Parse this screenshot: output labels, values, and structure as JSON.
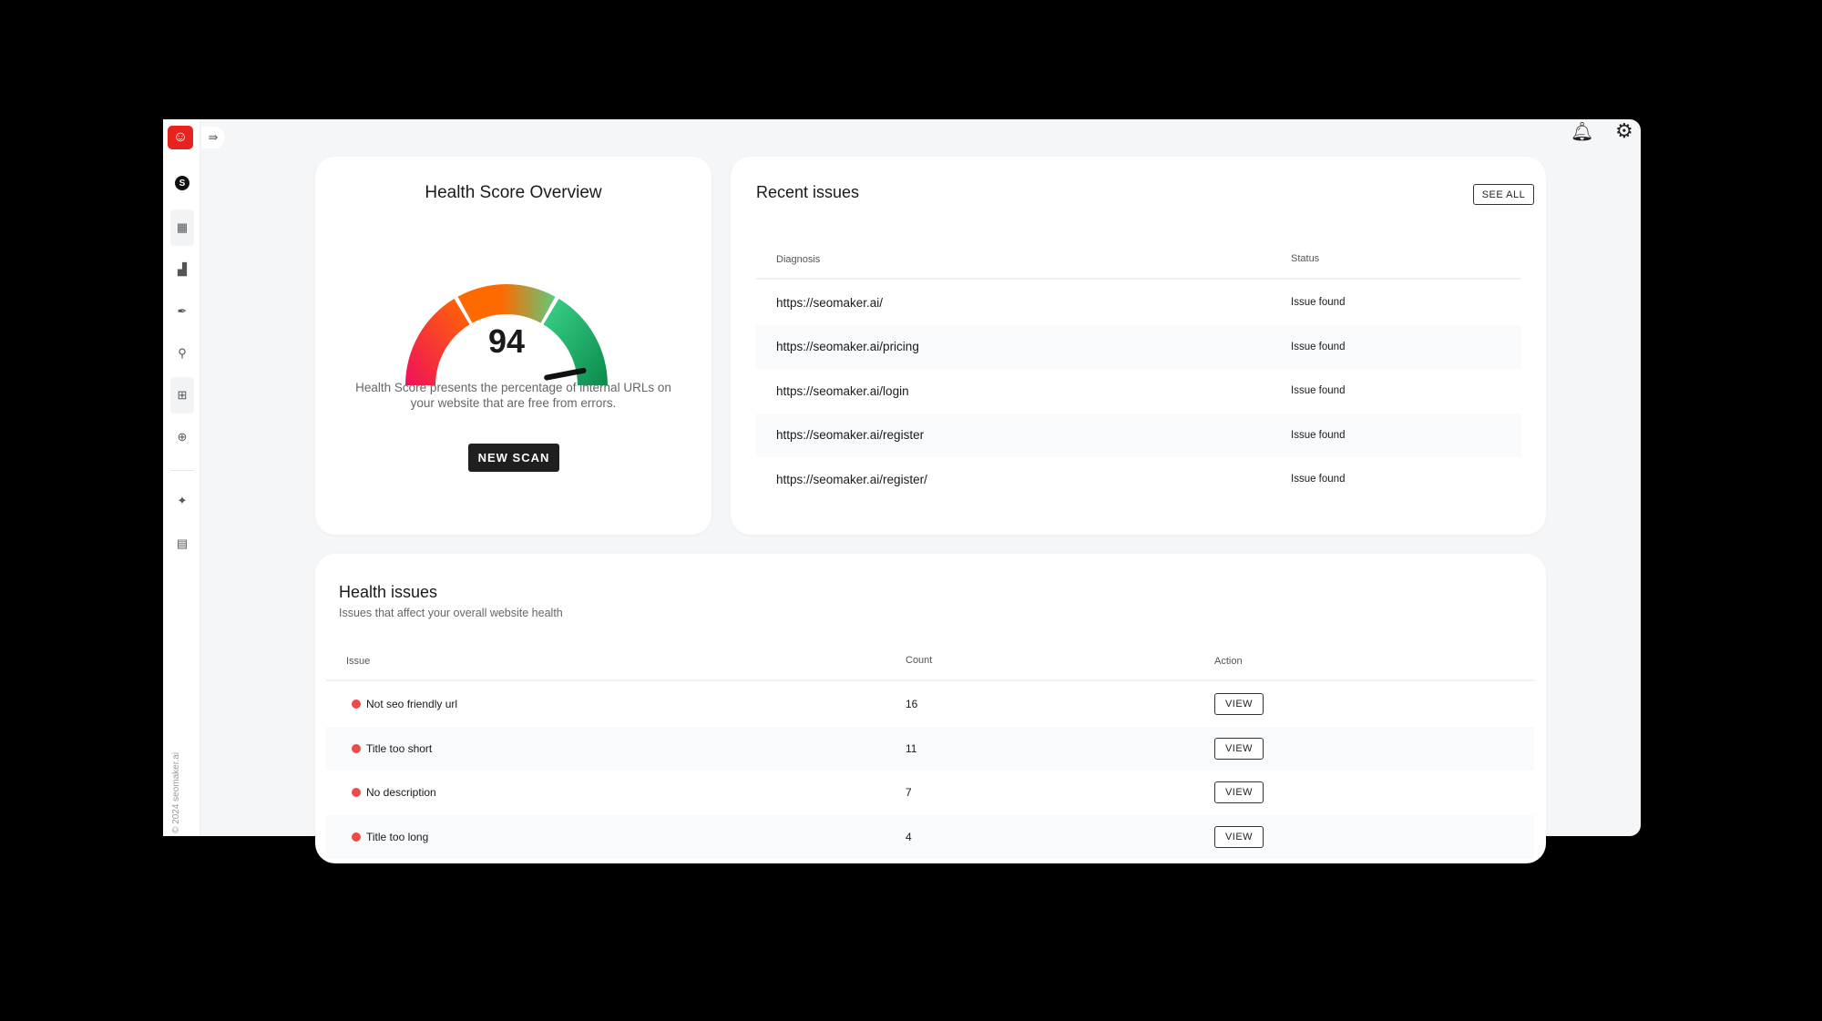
{
  "sidebar": {
    "logo": "seomaker-logo",
    "toggle_icon": "collapse-menu-icon",
    "items": [
      {
        "icon": "profile-s-icon"
      },
      {
        "icon": "dashboard-grid-icon",
        "active": true
      },
      {
        "icon": "bar-chart-icon"
      },
      {
        "icon": "feather-pen-icon"
      },
      {
        "icon": "search-icon"
      },
      {
        "icon": "health-plus-icon",
        "active": true
      },
      {
        "icon": "zoom-in-icon"
      },
      {
        "icon": "sparkles-icon"
      },
      {
        "icon": "news-icon"
      }
    ],
    "copyright": "© 2024 seomaker.ai"
  },
  "header": {
    "icons": [
      "bell-icon",
      "gear-icon"
    ]
  },
  "health_score": {
    "title": "Health Score Overview",
    "score": 94,
    "score_label": "94",
    "description": "Health Score presents the percentage of internal URLs on your website that are free from errors.",
    "button": "NEW SCAN",
    "colors": {
      "low": "#f0105a",
      "mid": "#ff6a00",
      "high": "#0b8a4b"
    }
  },
  "recent_issues": {
    "title": "Recent issues",
    "see_all": "SEE ALL",
    "columns": [
      "Diagnosis",
      "Status"
    ],
    "rows": [
      {
        "url": "https://seomaker.ai/",
        "status": "Issue found"
      },
      {
        "url": "https://seomaker.ai/pricing",
        "status": "Issue found"
      },
      {
        "url": "https://seomaker.ai/login",
        "status": "Issue found"
      },
      {
        "url": "https://seomaker.ai/register",
        "status": "Issue found"
      },
      {
        "url": "https://seomaker.ai/register/",
        "status": "Issue found"
      }
    ]
  },
  "health_issues": {
    "title": "Health issues",
    "subtitle": "Issues that affect your overall website health",
    "columns": [
      "Issue",
      "Count",
      "Action"
    ],
    "rows": [
      {
        "issue": "Not seo friendly url",
        "count": "16",
        "action": "VIEW"
      },
      {
        "issue": "Title too short",
        "count": "11",
        "action": "VIEW"
      },
      {
        "issue": "No description",
        "count": "7",
        "action": "VIEW"
      },
      {
        "issue": "Title too long",
        "count": "4",
        "action": "VIEW"
      }
    ],
    "severity_color": "#ef4a4a"
  }
}
